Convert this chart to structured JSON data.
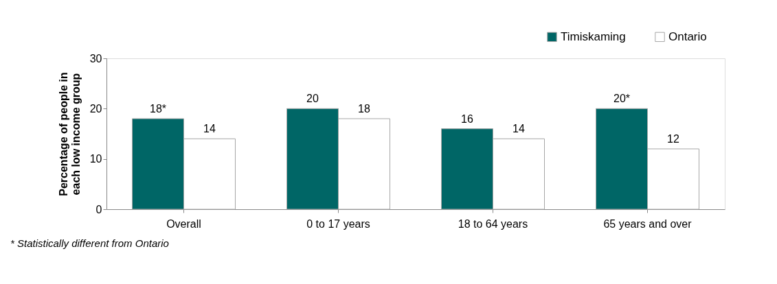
{
  "chart_data": {
    "type": "bar",
    "categories": [
      "Overall",
      "0 to 17 years",
      "18 to 64 years",
      "65 years and over"
    ],
    "series": [
      {
        "name": "Timiskaming",
        "color": "#006666",
        "values": [
          18,
          20,
          16,
          20
        ],
        "value_labels": [
          "18*",
          "20",
          "16",
          "20*"
        ]
      },
      {
        "name": "Ontario",
        "color": "#ffffff",
        "values": [
          14,
          18,
          14,
          12
        ],
        "value_labels": [
          "14",
          "18",
          "14",
          "12"
        ]
      }
    ],
    "ylabel": "Percentage of people in\neach low income group",
    "ylim": [
      0,
      30
    ],
    "yticks": [
      0,
      10,
      20,
      30
    ],
    "grid": false,
    "legend": "top right",
    "annotations": [
      "* Statistically different from Ontario"
    ]
  }
}
